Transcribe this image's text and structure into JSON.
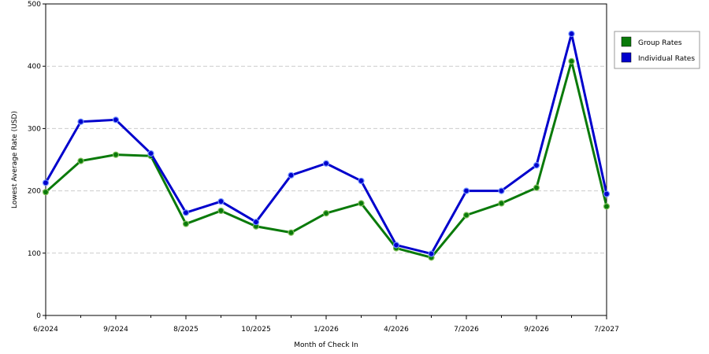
{
  "chart_data": {
    "type": "line",
    "xlabel": "Month of Check In",
    "ylabel": "Lowest Average Rate (USD)",
    "ylim": [
      0,
      500
    ],
    "yticks": [
      0,
      100,
      200,
      300,
      400,
      500
    ],
    "x_tick_labels": [
      "6/2024",
      "9/2024",
      "8/2025",
      "10/2025",
      "1/2026",
      "4/2026",
      "7/2026",
      "9/2026",
      "7/2027"
    ],
    "grid": "horizontal dashed",
    "legend_position": "right",
    "series": [
      {
        "name": "Group Rates",
        "color": "#0a7a0a",
        "values": [
          198,
          248,
          258,
          256,
          147,
          168,
          143,
          133,
          164,
          180,
          108,
          93,
          161,
          180,
          205,
          408,
          175
        ]
      },
      {
        "name": "Individual Rates",
        "color": "#0000cc",
        "values": [
          213,
          311,
          314,
          260,
          165,
          183,
          150,
          225,
          244,
          216,
          113,
          99,
          200,
          200,
          241,
          452,
          195
        ]
      }
    ]
  }
}
